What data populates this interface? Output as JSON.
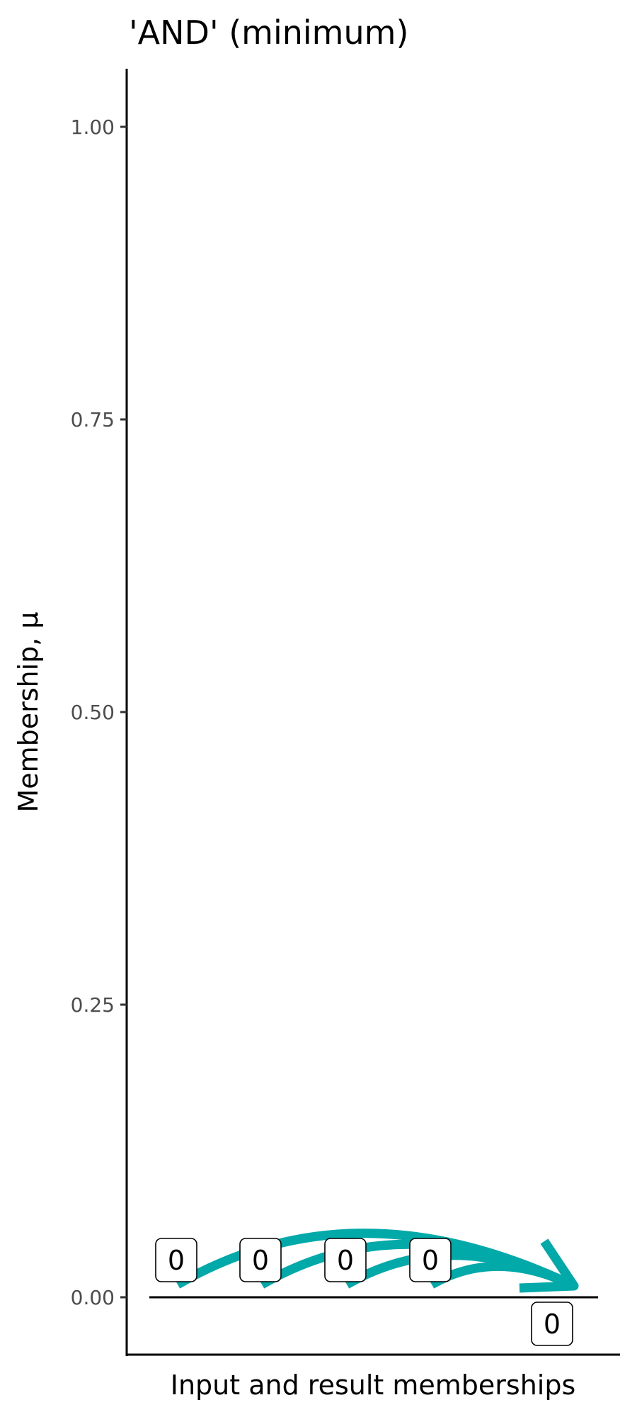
{
  "chart_data": {
    "type": "annotated-points",
    "title": "'AND' (minimum)",
    "xlabel": "Input and result memberships",
    "ylabel": "Membership, μ",
    "ylim": [
      -0.05,
      1.05
    ],
    "yticks": [
      0.0,
      0.25,
      0.5,
      0.75,
      1.0
    ],
    "ytick_labels": [
      "0.00",
      "0.25",
      "0.50",
      "0.75",
      "1.00"
    ],
    "grid": false,
    "inputs": [
      {
        "value": 0,
        "label": "0"
      },
      {
        "value": 0,
        "label": "0"
      },
      {
        "value": 0,
        "label": "0"
      },
      {
        "value": 0,
        "label": "0"
      }
    ],
    "result": {
      "value": 0,
      "label": "0"
    },
    "arrow_color": "#02a9a9",
    "reference_line_value": 0
  }
}
